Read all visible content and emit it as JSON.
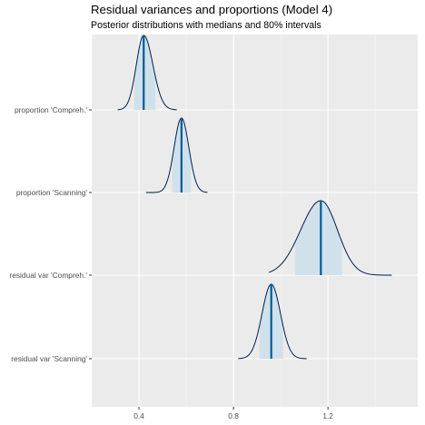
{
  "chart_data": {
    "type": "ridgeline",
    "title": "Residual variances and proportions (Model 4)",
    "subtitle": "Posterior distributions with medians and 80% intervals",
    "xlim": [
      0.2,
      1.58
    ],
    "x_ticks": [
      0.4,
      0.8,
      1.2
    ],
    "x_tick_labels": [
      "0.4",
      "0.8",
      "1.2"
    ],
    "grid": true,
    "series": [
      {
        "name": "proportion 'Compreh.'",
        "median": 0.42,
        "interval80": [
          0.38,
          0.47
        ],
        "range": [
          0.31,
          0.56
        ]
      },
      {
        "name": "proportion 'Scanning'",
        "median": 0.58,
        "interval80": [
          0.54,
          0.62
        ],
        "range": [
          0.43,
          0.69
        ]
      },
      {
        "name": "residual var 'Compreh.'",
        "median": 1.17,
        "interval80": [
          1.06,
          1.26
        ],
        "range": [
          0.95,
          1.47
        ]
      },
      {
        "name": "residual var 'Scanning'",
        "median": 0.96,
        "interval80": [
          0.91,
          1.01
        ],
        "range": [
          0.82,
          1.11
        ]
      }
    ],
    "colors": {
      "panel_bg": "#ebebeb",
      "grid_major": "#ffffff",
      "interval_fill": "#d1e1ec",
      "density_line": "#011f4b",
      "median_line": "#005b96"
    }
  }
}
